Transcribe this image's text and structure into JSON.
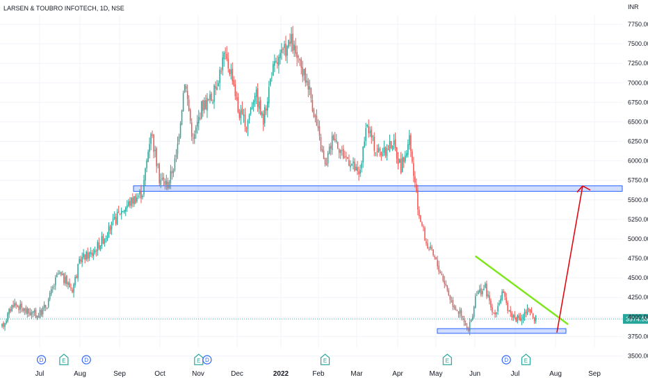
{
  "chart_data": {
    "type": "candlestick",
    "title": "LARSEN & TOUBRO INFOTECH, 1D, NSE",
    "currency": "INR",
    "ylim": [
      3500,
      7900
    ],
    "y_ticks": [
      "7750.00",
      "7500.00",
      "7250.00",
      "7000.00",
      "6750.00",
      "6500.00",
      "6250.00",
      "6000.00",
      "5750.00",
      "5500.00",
      "5250.00",
      "5000.00",
      "4750.00",
      "4500.00",
      "4250.00",
      "4000.00",
      "3750.00",
      "3500.00"
    ],
    "x_ticks": [
      {
        "label": "Jul",
        "bold": false
      },
      {
        "label": "Aug",
        "bold": false
      },
      {
        "label": "Sep",
        "bold": false
      },
      {
        "label": "Oct",
        "bold": false
      },
      {
        "label": "Nov",
        "bold": false
      },
      {
        "label": "Dec",
        "bold": false
      },
      {
        "label": "2022",
        "bold": true
      },
      {
        "label": "Feb",
        "bold": false
      },
      {
        "label": "Mar",
        "bold": false
      },
      {
        "label": "Apr",
        "bold": false
      },
      {
        "label": "May",
        "bold": false
      },
      {
        "label": "Jun",
        "bold": false
      },
      {
        "label": "Jul",
        "bold": false
      },
      {
        "label": "Aug",
        "bold": false
      },
      {
        "label": "Sep",
        "bold": false
      }
    ],
    "last_price": "3974.55",
    "anchors": [
      [
        0,
        3870
      ],
      [
        8,
        4180
      ],
      [
        18,
        4060
      ],
      [
        26,
        4020
      ],
      [
        32,
        4170
      ],
      [
        40,
        4560
      ],
      [
        50,
        4360
      ],
      [
        56,
        4750
      ],
      [
        64,
        4820
      ],
      [
        74,
        5050
      ],
      [
        84,
        5350
      ],
      [
        94,
        5520
      ],
      [
        100,
        5600
      ],
      [
        106,
        6400
      ],
      [
        112,
        5780
      ],
      [
        118,
        5700
      ],
      [
        124,
        6050
      ],
      [
        130,
        7050
      ],
      [
        136,
        6250
      ],
      [
        142,
        6700
      ],
      [
        150,
        6820
      ],
      [
        158,
        7350
      ],
      [
        164,
        7100
      ],
      [
        168,
        6650
      ],
      [
        174,
        6450
      ],
      [
        180,
        6900
      ],
      [
        186,
        6500
      ],
      [
        192,
        7150
      ],
      [
        200,
        7380
      ],
      [
        206,
        7530
      ],
      [
        212,
        7200
      ],
      [
        218,
        7000
      ],
      [
        224,
        6450
      ],
      [
        230,
        5920
      ],
      [
        236,
        6350
      ],
      [
        242,
        6100
      ],
      [
        248,
        6000
      ],
      [
        254,
        5800
      ],
      [
        260,
        6450
      ],
      [
        266,
        6150
      ],
      [
        272,
        6100
      ],
      [
        278,
        6250
      ],
      [
        284,
        5920
      ],
      [
        290,
        6250
      ],
      [
        296,
        5400
      ],
      [
        302,
        4950
      ],
      [
        308,
        4750
      ],
      [
        314,
        4500
      ],
      [
        320,
        4200
      ],
      [
        326,
        4050
      ],
      [
        332,
        3800
      ],
      [
        338,
        4300
      ],
      [
        344,
        4380
      ],
      [
        350,
        4000
      ],
      [
        356,
        4300
      ],
      [
        362,
        4050
      ],
      [
        368,
        3950
      ],
      [
        374,
        4080
      ],
      [
        380,
        3980
      ]
    ],
    "event_markers": [
      {
        "label": "D",
        "style": "blue",
        "date_index": 28
      },
      {
        "label": "E",
        "style": "green",
        "date_index": 44
      },
      {
        "label": "D",
        "style": "blue",
        "date_index": 60
      },
      {
        "label": "E",
        "style": "green",
        "date_index": 140
      },
      {
        "label": "D",
        "style": "blue",
        "date_index": 146
      },
      {
        "label": "E",
        "style": "green",
        "date_index": 230
      },
      {
        "label": "E",
        "style": "green",
        "date_index": 317
      },
      {
        "label": "D",
        "style": "blue",
        "date_index": 359
      },
      {
        "label": "E",
        "style": "green",
        "date_index": 373
      }
    ],
    "zones": [
      {
        "name": "resistance",
        "from": 5610,
        "to": 5680
      },
      {
        "name": "support",
        "from": 3790,
        "to": 3850
      }
    ],
    "trendline": {
      "from": [
        4780,
        337
      ],
      "to": [
        3905,
        403
      ]
    },
    "projection_arrow": {
      "from": 3800,
      "to": 5750
    },
    "colors": {
      "up": "#26a69a",
      "down": "#ef5350",
      "zone": "#2962ff",
      "trendline": "#7fe61e",
      "arrow": "#e4060e",
      "price_label": "#26a69a"
    }
  }
}
